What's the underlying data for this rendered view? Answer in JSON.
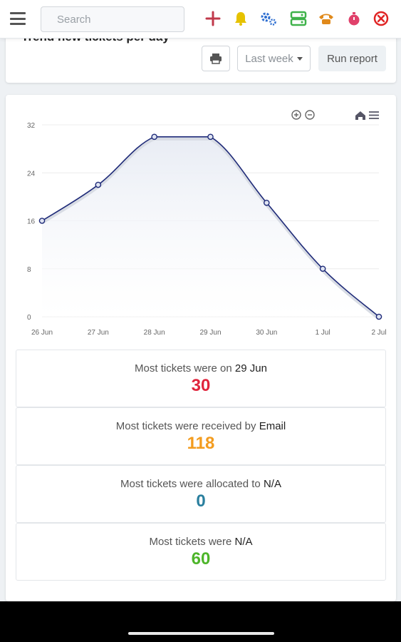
{
  "topbar": {
    "search_placeholder": "Search",
    "icons": [
      {
        "name": "add-icon",
        "color": "#c0394b"
      },
      {
        "name": "bell-icon",
        "color": "#e6c200"
      },
      {
        "name": "gears-icon",
        "color": "#2f6fd1"
      },
      {
        "name": "servers-icon",
        "color": "#3fb24a"
      },
      {
        "name": "phone-icon",
        "color": "#e0891a"
      },
      {
        "name": "stopwatch-icon",
        "color": "#e0416b"
      },
      {
        "name": "close-circle-icon",
        "color": "#e02424"
      }
    ]
  },
  "report": {
    "title": "Trend new tickets per day",
    "period": "Last week",
    "run_label": "Run report"
  },
  "chart_data": {
    "type": "area",
    "categories": [
      "26 Jun",
      "27 Jun",
      "28 Jun",
      "29 Jun",
      "30 Jun",
      "1 Jul",
      "2 Jul"
    ],
    "values": [
      16,
      22,
      30,
      30,
      19,
      8,
      0
    ],
    "y_ticks": [
      "0",
      "8",
      "16",
      "24",
      "32"
    ],
    "ylim": [
      0,
      32
    ],
    "grid": true,
    "color": "#1e2a78",
    "area_color": "#e8ecf4"
  },
  "stats": [
    {
      "label": "Most tickets were on",
      "highlight": "29 Jun",
      "value": "30",
      "color": "#e0243c"
    },
    {
      "label": "Most tickets were received by",
      "highlight": "Email",
      "value": "118",
      "color": "#f39c1f"
    },
    {
      "label": "Most tickets were allocated to",
      "highlight": "N/A",
      "value": "0",
      "color": "#2a7f9e"
    },
    {
      "label": "Most tickets were",
      "highlight": "N/A",
      "value": "60",
      "color": "#4db52a"
    }
  ]
}
